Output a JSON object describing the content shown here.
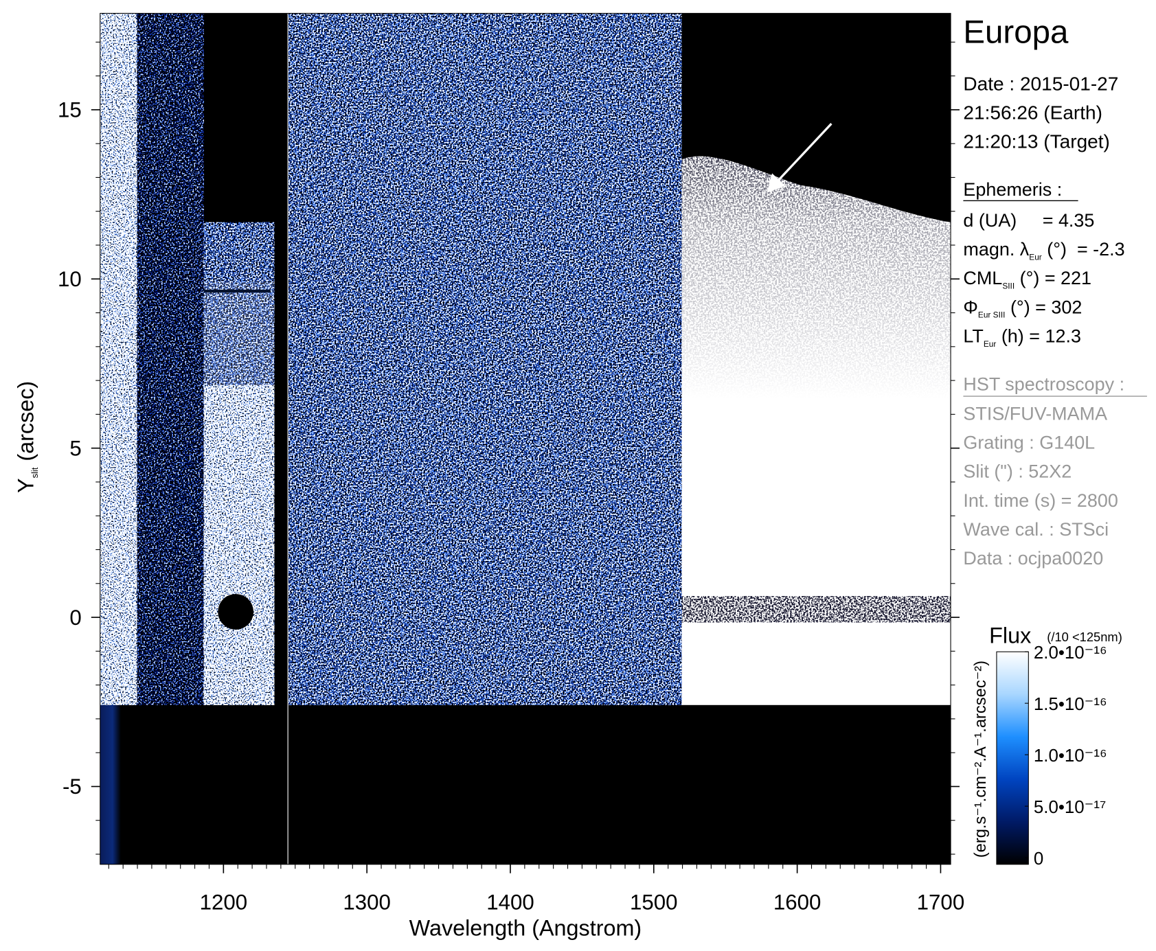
{
  "chart_data": {
    "type": "spectrogram",
    "xlabel": "Wavelength (Angstrom)",
    "ylabel": [
      "Y",
      "slit",
      " (arcsec)"
    ],
    "xlim": [
      1114,
      1707
    ],
    "ylim": [
      -7.3,
      17.85
    ],
    "xticks": [
      1200,
      1300,
      1400,
      1500,
      1600,
      1700
    ],
    "yticks": [
      -5,
      0,
      5,
      10,
      15
    ],
    "x_minor_step": 10,
    "y_minor_step": 1,
    "colorbar": {
      "title": "Flux",
      "note": "(/10 <125nm)",
      "unit": "(erg.s⁻¹.cm⁻².A⁻¹.arcsec⁻²)",
      "clim": [
        0,
        2e-16
      ],
      "ticks": [
        0,
        {
          "value": 5e-17,
          "label": "5.0•10⁻¹⁷"
        },
        {
          "value": 1e-16,
          "label": "1.0•10⁻¹⁶"
        },
        {
          "value": 1.5e-16,
          "label": "1.5•10⁻¹⁶"
        },
        {
          "value": 2e-16,
          "label": "2.0•10⁻¹⁶"
        }
      ],
      "colors": [
        "#000000",
        "#001a66",
        "#0044c0",
        "#1e8fff",
        "#a8d6ff",
        "#ffffff"
      ]
    }
  },
  "panel": {
    "title": "Europa",
    "date_lines": [
      "Date : 2015-01-27",
      "21:56:26 (Earth)",
      "21:20:13 (Target)"
    ],
    "ephemeris_title": "Ephemeris :",
    "ephemeris": [
      [
        "d (UA)     = 4.35"
      ],
      [
        "magn. λ",
        "Eur",
        " (°)  = -2.3"
      ],
      [
        "CML",
        "SIII",
        " (°) = 221"
      ],
      [
        "Φ",
        "Eur SIII",
        " (°) = 302"
      ],
      [
        "LT",
        "Eur",
        " (h) = 12.3"
      ]
    ],
    "hst_title": "HST spectroscopy :",
    "hst": [
      "STIS/FUV-MAMA",
      "Grating : G140L",
      "Slit (\") : 52X2",
      "Int. time (s) = 2800",
      "Wave cal. : STSci",
      "Data : ocjpa0020"
    ]
  }
}
